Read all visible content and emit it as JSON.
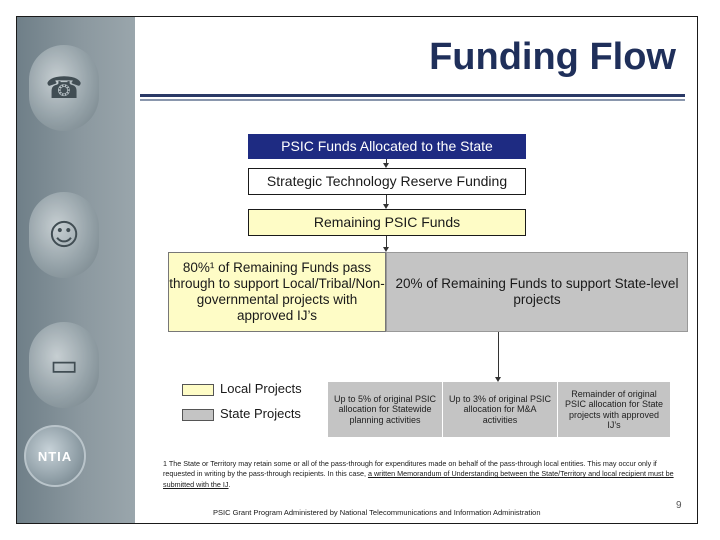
{
  "title": "Funding Flow",
  "flow": {
    "allocated": "PSIC Funds Allocated to the State",
    "str": "Strategic Technology Reserve Funding",
    "remaining": "Remaining PSIC Funds",
    "local_split": "80%¹ of Remaining Funds pass through to support Local/Tribal/Non-governmental projects with approved IJ’s",
    "state_split": "20% of Remaining Funds to support State-level projects"
  },
  "state_subs": [
    {
      "text": "Up to 5% of original PSIC allocation for Statewide planning activities"
    },
    {
      "text": "Up to 3% of original PSIC allocation for M&A activities"
    },
    {
      "text": "Remainder of original PSIC allocation for State projects with approved IJ’s"
    }
  ],
  "legend": {
    "local": {
      "label": "Local Projects",
      "color": "#fefcc6"
    },
    "state": {
      "label": "State Projects",
      "color": "#c4c4c4"
    }
  },
  "footnote": {
    "main": "1 The State or Territory may retain some or all of the pass-through for expenditures made on behalf of the pass-through local entities. This may occur only if requested in writing by the pass-through recipients. In this case, ",
    "underlined": "a written Memorandum of Understanding between the State/Territory and local recipient must be submitted with the IJ",
    "tail": "."
  },
  "footer": "PSIC Grant Program Administered by National Telecommunications and Information Administration",
  "page_number": "9",
  "logo_text": "NTIA",
  "side_icons": [
    "radio-icon",
    "officer-icon",
    "laptop-icon"
  ],
  "colors": {
    "title": "#1f2f5a",
    "header_box": "#1e2b82",
    "local": "#fefcc6",
    "state": "#c4c4c4"
  }
}
